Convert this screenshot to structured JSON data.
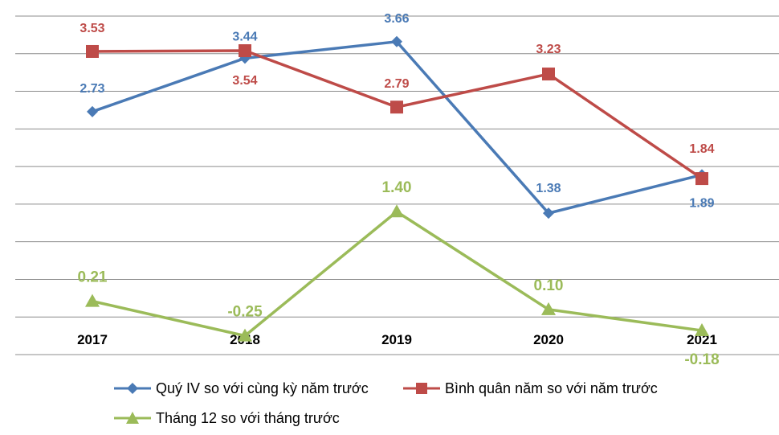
{
  "chart_data": {
    "type": "line",
    "categories": [
      "2017",
      "2018",
      "2019",
      "2020",
      "2021"
    ],
    "series": [
      {
        "name": "Quý IV so với cùng kỳ năm trước",
        "values": [
          2.73,
          3.44,
          3.66,
          1.38,
          1.89
        ],
        "labels": [
          "2.73",
          "3.44",
          "3.66",
          "1.38",
          "1.89"
        ],
        "color": "#4a7ab5",
        "marker": "diamond"
      },
      {
        "name": "Bình quân năm so với năm trước",
        "values": [
          3.53,
          3.54,
          2.79,
          3.23,
          1.84
        ],
        "labels": [
          "3.53",
          "3.54",
          "2.79",
          "3.23",
          "1.84"
        ],
        "color": "#be4b48",
        "marker": "square"
      },
      {
        "name": "Tháng 12 so với tháng trước",
        "values": [
          0.21,
          -0.25,
          1.4,
          0.1,
          -0.18
        ],
        "labels": [
          "0.21",
          "-0.25",
          "1.40",
          "0.10",
          "-0.18"
        ],
        "color": "#9bbb59",
        "marker": "triangle"
      }
    ],
    "ylim": [
      -0.5,
      4.0
    ],
    "grid": true,
    "legend_position": "bottom"
  }
}
